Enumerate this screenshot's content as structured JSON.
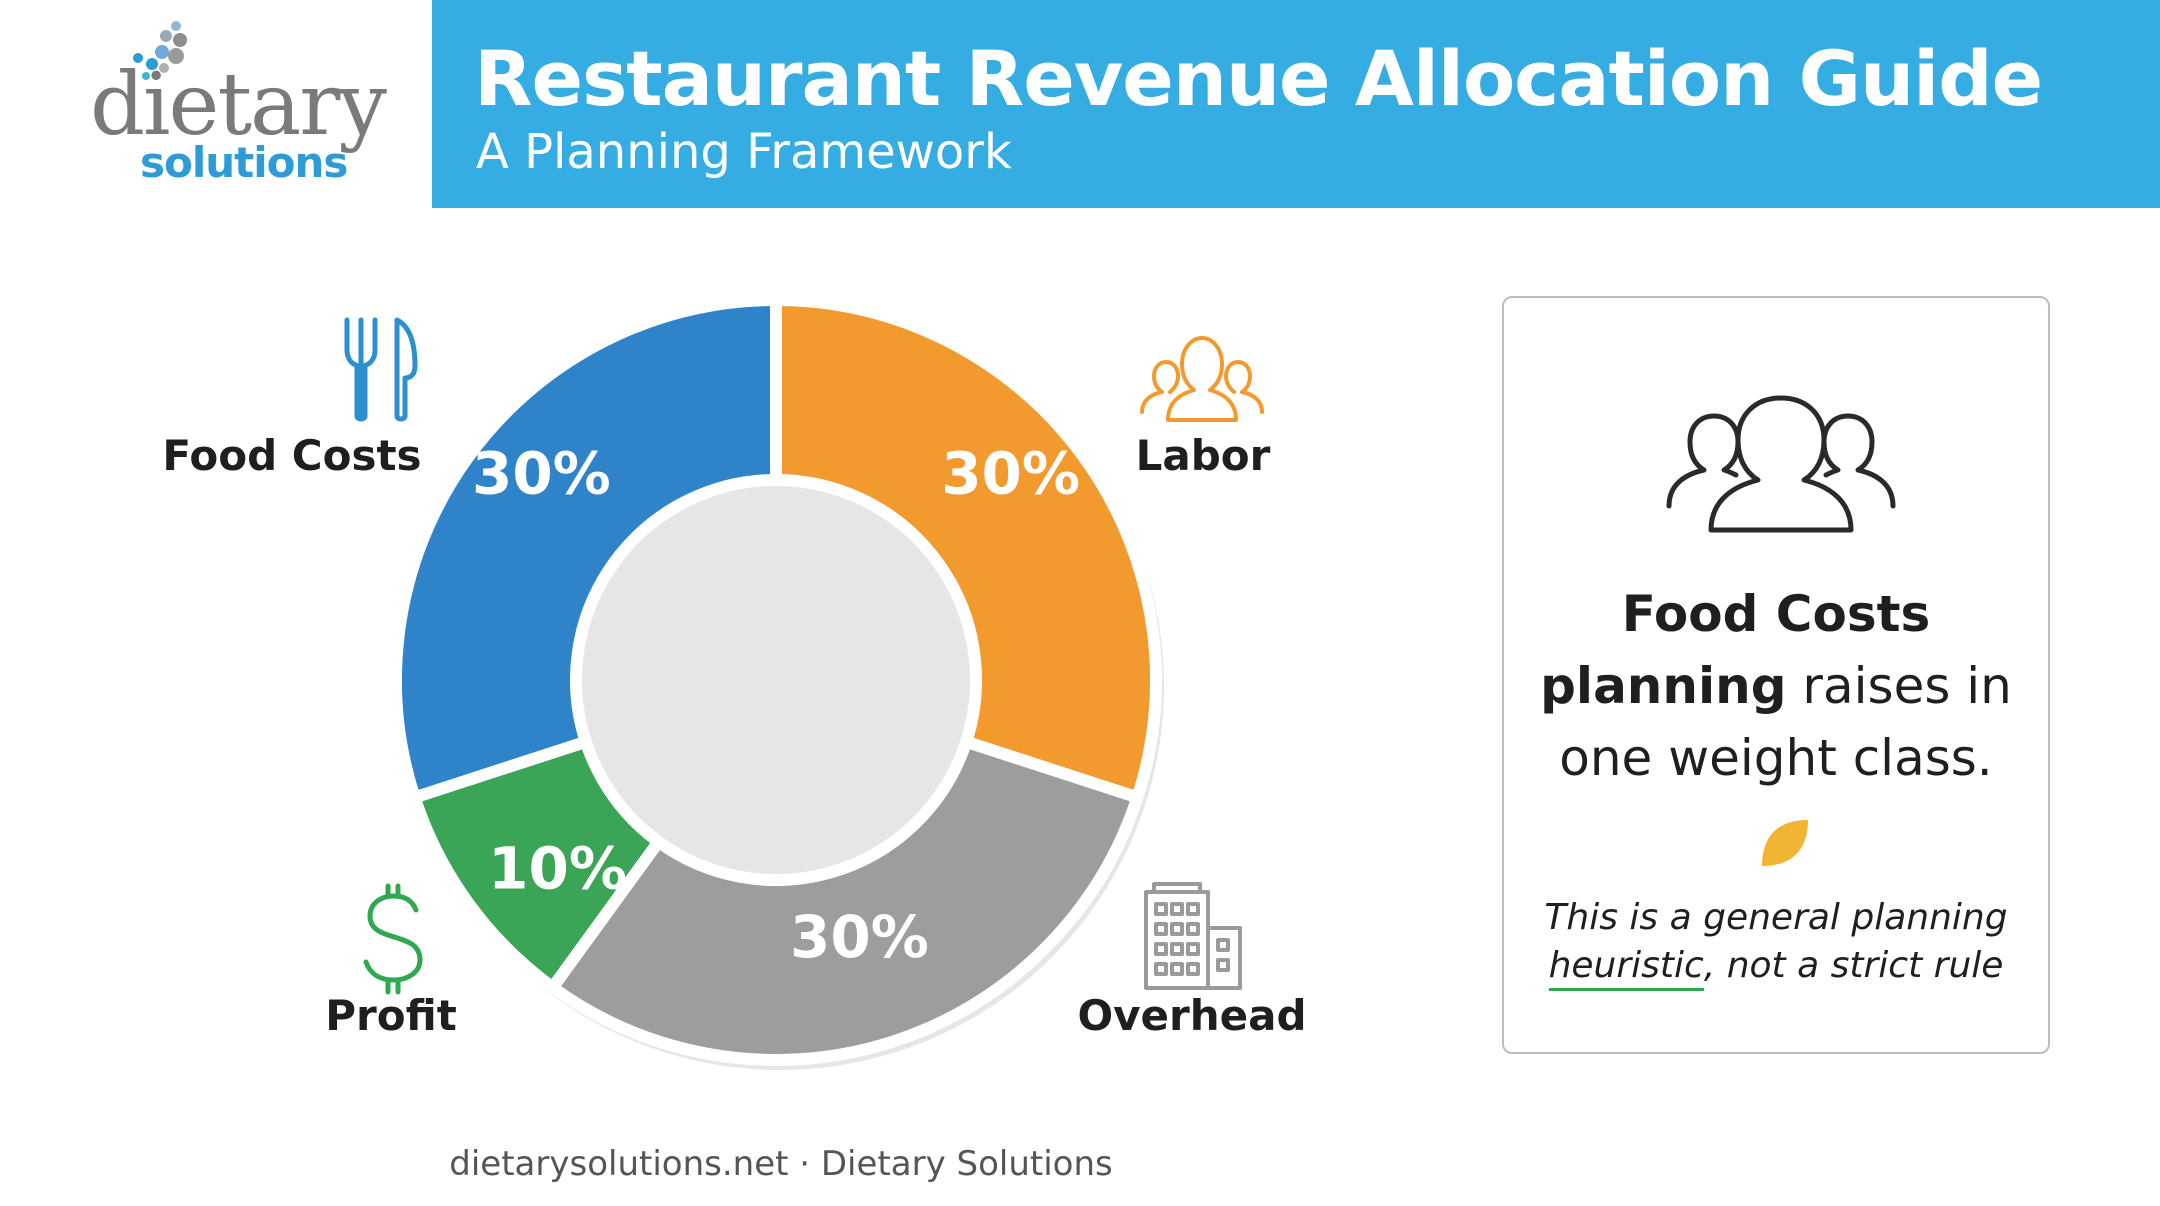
{
  "brand": {
    "logo_word": "dietary",
    "logo_sub": "solutions"
  },
  "header": {
    "title": "Restaurant Revenue Allocation Guide",
    "subtitle": "A Planning Framework"
  },
  "chart_data": {
    "type": "pie",
    "style": "donut",
    "categories": [
      "Food Costs",
      "Labor",
      "Overhead",
      "Profit"
    ],
    "values": [
      30,
      30,
      30,
      10
    ],
    "labels": [
      "30%",
      "30%",
      "30%",
      "10%"
    ],
    "colors": [
      "#2f84c9",
      "#f39a2f",
      "#9d9d9d",
      "#3aa457"
    ],
    "icons": [
      "fork-knife-icon",
      "people-icon",
      "building-icon",
      "dollar-icon"
    ],
    "icon_colors": [
      "#2c8fd0",
      "#f39a2f",
      "#9a9a9a",
      "#2fa84f"
    ]
  },
  "card": {
    "bold_part": "Food Costs planning",
    "rest": " raises in one weight class.",
    "note_before": "This is a general planning ",
    "note_underlined": "heuristic",
    "note_after": ", not a strict rule",
    "icon": "people-icon",
    "accent_color": "#f2b533"
  },
  "footer": {
    "text": "dietarysolutions.net · Dietary Solutions"
  }
}
